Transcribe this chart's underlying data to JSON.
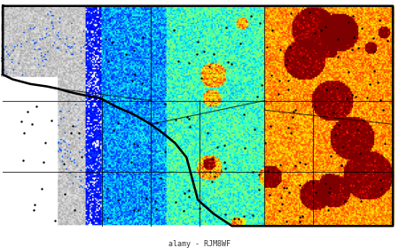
{
  "title": "",
  "background_color": "#ffffff",
  "map_bg": "#e8e8e8",
  "border_color": "black",
  "border_linewidth": 1.5,
  "dot_color": "black",
  "dot_size": 3,
  "watermark": "alamy - RJM8WF",
  "colormap": "jet",
  "noise_seed": 42,
  "montana_outline": true
}
